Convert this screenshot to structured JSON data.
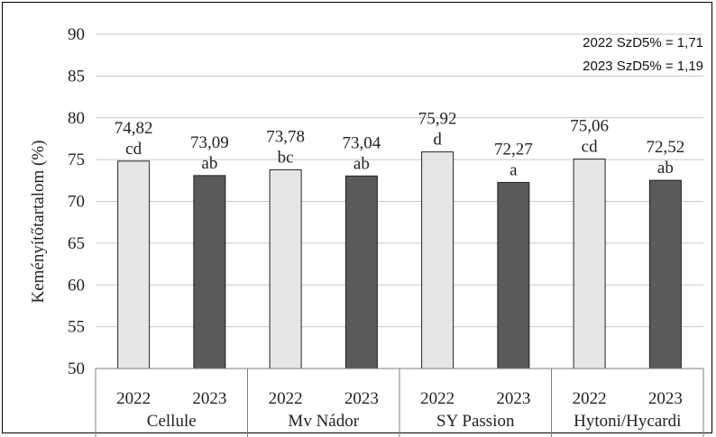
{
  "chart_data": {
    "type": "bar",
    "title": "",
    "xlabel": "",
    "ylabel": "Keményítőtartalom  (%)",
    "ylim": [
      50,
      90
    ],
    "yticks": [
      50,
      55,
      60,
      65,
      70,
      75,
      80,
      85,
      90
    ],
    "grid": true,
    "legend": "none",
    "annotations": [
      "2022 SzD5% = 1,71",
      "2023 SzD5% = 1,19"
    ],
    "groups": [
      {
        "name": "Cellule",
        "bars": [
          {
            "year": "2022",
            "value": 74.82,
            "label": "74,82",
            "letters": "cd"
          },
          {
            "year": "2023",
            "value": 73.09,
            "label": "73,09",
            "letters": "ab"
          }
        ]
      },
      {
        "name": "Mv Nádor",
        "bars": [
          {
            "year": "2022",
            "value": 73.78,
            "label": "73,78",
            "letters": "bc"
          },
          {
            "year": "2023",
            "value": 73.04,
            "label": "73,04",
            "letters": "ab"
          }
        ]
      },
      {
        "name": "SY Passion",
        "bars": [
          {
            "year": "2022",
            "value": 75.92,
            "label": "75,92",
            "letters": "d"
          },
          {
            "year": "2023",
            "value": 72.27,
            "label": "72,27",
            "letters": "a"
          }
        ]
      },
      {
        "name": "Hytoni/Hycardi",
        "bars": [
          {
            "year": "2022",
            "value": 75.06,
            "label": "75,06",
            "letters": "cd"
          },
          {
            "year": "2023",
            "value": 72.52,
            "label": "72,52",
            "letters": "ab"
          }
        ]
      }
    ],
    "colors": {
      "2022": "#e6e6e6",
      "2023": "#5a5a5a"
    }
  }
}
